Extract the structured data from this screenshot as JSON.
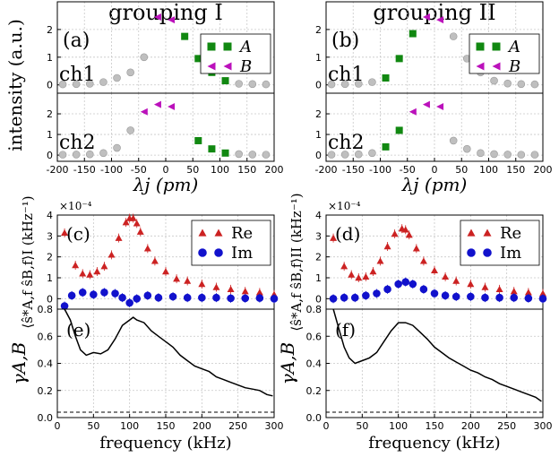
{
  "titles": [
    "grouping I",
    "grouping II"
  ],
  "colors": {
    "gray": "#bfbfbf",
    "green": "#118811",
    "magenta": "#bb11bb",
    "red": "#cc2222",
    "blue": "#1111cc",
    "grid": "#c8c8c8"
  },
  "chart_data": [
    {
      "id": "a",
      "type": "scatter",
      "panel_label": "(a)",
      "title": "grouping I",
      "channel_label": "ch1",
      "ylabel": "intensity (a.u.)",
      "xlabel": "λj (pm)",
      "xlim": [
        -200,
        200
      ],
      "ylim": [
        -0.3,
        3.0
      ],
      "yticks": [
        0,
        1,
        2
      ],
      "xticks": [
        -200,
        -150,
        -100,
        -50,
        0,
        50,
        100,
        150,
        200
      ],
      "series": [
        {
          "name": "",
          "color": "gray",
          "marker": "circle",
          "x": [
            -190,
            -165,
            -140,
            -115,
            -90,
            -65,
            -40,
            135,
            160,
            185
          ],
          "y": [
            0.02,
            0.03,
            0.04,
            0.1,
            0.25,
            0.45,
            1.0,
            0.04,
            0.03,
            0.02
          ]
        },
        {
          "name": "A",
          "color": "green",
          "marker": "square",
          "x": [
            35,
            60,
            85,
            110
          ],
          "y": [
            1.75,
            0.95,
            0.45,
            0.15
          ]
        },
        {
          "name": "B",
          "color": "magenta",
          "marker": "triangle-left",
          "x": [
            -15,
            10
          ],
          "y": [
            2.45,
            2.35
          ]
        }
      ],
      "legend": [
        {
          "label": "A",
          "color": "green",
          "marker": "square"
        },
        {
          "label": "B",
          "color": "magenta",
          "marker": "triangle-left"
        }
      ]
    },
    {
      "id": "a2",
      "type": "scatter",
      "channel_label": "ch2",
      "xlim": [
        -200,
        200
      ],
      "ylim": [
        -0.3,
        3.0
      ],
      "yticks": [
        0,
        1,
        2
      ],
      "series": [
        {
          "name": "",
          "color": "gray",
          "marker": "circle",
          "x": [
            -190,
            -165,
            -140,
            -115,
            -90,
            -65,
            135,
            160,
            185
          ],
          "y": [
            0.02,
            0.03,
            0.04,
            0.1,
            0.35,
            1.2,
            0.05,
            0.03,
            0.02
          ]
        },
        {
          "name": "A",
          "color": "green",
          "marker": "square",
          "x": [
            60,
            85,
            110
          ],
          "y": [
            0.7,
            0.3,
            0.1
          ]
        },
        {
          "name": "B",
          "color": "magenta",
          "marker": "triangle-left",
          "x": [
            -40,
            -15,
            10
          ],
          "y": [
            2.1,
            2.45,
            2.35
          ]
        }
      ]
    },
    {
      "id": "b",
      "type": "scatter",
      "panel_label": "(b)",
      "title": "grouping II",
      "channel_label": "ch1",
      "ylabel": "",
      "xlabel": "λj (pm)",
      "xlim": [
        -200,
        200
      ],
      "ylim": [
        -0.3,
        3.0
      ],
      "yticks": [
        0,
        1,
        2
      ],
      "xticks": [
        -200,
        -150,
        -100,
        -50,
        0,
        50,
        100,
        150,
        200
      ],
      "series": [
        {
          "name": "",
          "color": "gray",
          "marker": "circle",
          "x": [
            -190,
            -165,
            -140,
            -115,
            35,
            60,
            85,
            110,
            135,
            160,
            185
          ],
          "y": [
            0.02,
            0.03,
            0.04,
            0.1,
            1.75,
            0.95,
            0.45,
            0.15,
            0.05,
            0.03,
            0.02
          ]
        },
        {
          "name": "A",
          "color": "green",
          "marker": "square",
          "x": [
            -90,
            -65,
            -40
          ],
          "y": [
            0.25,
            0.95,
            1.85
          ]
        },
        {
          "name": "B",
          "color": "magenta",
          "marker": "triangle-left",
          "x": [
            -15,
            10
          ],
          "y": [
            2.45,
            2.35
          ]
        }
      ],
      "legend": [
        {
          "label": "A",
          "color": "green",
          "marker": "square"
        },
        {
          "label": "B",
          "color": "magenta",
          "marker": "triangle-left"
        }
      ]
    },
    {
      "id": "b2",
      "type": "scatter",
      "channel_label": "ch2",
      "xlim": [
        -200,
        200
      ],
      "ylim": [
        -0.3,
        3.0
      ],
      "yticks": [
        0,
        1,
        2
      ],
      "series": [
        {
          "name": "",
          "color": "gray",
          "marker": "circle",
          "x": [
            -190,
            -165,
            -140,
            -115,
            35,
            60,
            85,
            110,
            135,
            160,
            185
          ],
          "y": [
            0.02,
            0.03,
            0.04,
            0.1,
            0.7,
            0.3,
            0.1,
            0.05,
            0.03,
            0.02,
            0.02
          ]
        },
        {
          "name": "A",
          "color": "green",
          "marker": "square",
          "x": [
            -90,
            -65
          ],
          "y": [
            0.4,
            1.2
          ]
        },
        {
          "name": "B",
          "color": "magenta",
          "marker": "triangle-left",
          "x": [
            -40,
            -15,
            10
          ],
          "y": [
            2.1,
            2.45,
            2.35
          ]
        }
      ]
    },
    {
      "id": "c",
      "type": "scatter",
      "panel_label": "(c)",
      "ylabel": "⟨ŝ*A,f ŝB,f⟩I (kHz⁻¹)",
      "exponent_label": "×10⁻⁴",
      "xlim": [
        0,
        300
      ],
      "ylim": [
        -0.5,
        4.0
      ],
      "yticks": [
        0,
        1,
        2,
        3,
        4
      ],
      "xticks": [
        0,
        50,
        100,
        150,
        200,
        250,
        300
      ],
      "series": [
        {
          "name": "Re",
          "color": "red",
          "marker": "triangle-up",
          "errorbars": true,
          "x": [
            10,
            25,
            35,
            45,
            55,
            65,
            75,
            85,
            95,
            100,
            105,
            110,
            115,
            125,
            135,
            150,
            165,
            180,
            200,
            220,
            240,
            260,
            280,
            300
          ],
          "y": [
            3.15,
            1.6,
            1.2,
            1.15,
            1.3,
            1.55,
            2.1,
            2.9,
            3.65,
            3.85,
            3.85,
            3.6,
            3.2,
            2.4,
            1.8,
            1.3,
            0.95,
            0.85,
            0.7,
            0.55,
            0.45,
            0.35,
            0.3,
            0.2
          ]
        },
        {
          "name": "Im",
          "color": "blue",
          "marker": "circle",
          "errorbars": true,
          "x": [
            10,
            20,
            35,
            50,
            65,
            80,
            90,
            100,
            110,
            125,
            140,
            160,
            180,
            200,
            220,
            240,
            260,
            280,
            300
          ],
          "y": [
            -0.35,
            0.15,
            0.3,
            0.2,
            0.3,
            0.25,
            0.05,
            -0.2,
            0.0,
            0.15,
            0.05,
            0.1,
            0.05,
            0.05,
            0.05,
            0.02,
            0.02,
            0.03,
            0.0
          ]
        }
      ],
      "legend": [
        {
          "label": "Re",
          "color": "red",
          "marker": "triangle-up"
        },
        {
          "label": "Im",
          "color": "blue",
          "marker": "circle"
        }
      ]
    },
    {
      "id": "d",
      "type": "scatter",
      "panel_label": "(d)",
      "ylabel": "⟨ŝ*A,f ŝB,f⟩II (kHz⁻¹)",
      "exponent_label": "×10⁻⁴",
      "xlim": [
        0,
        300
      ],
      "ylim": [
        -0.5,
        4.0
      ],
      "yticks": [
        0,
        1,
        2,
        3,
        4
      ],
      "xticks": [
        0,
        50,
        100,
        150,
        200,
        250,
        300
      ],
      "series": [
        {
          "name": "Re",
          "color": "red",
          "marker": "triangle-up",
          "errorbars": true,
          "x": [
            10,
            25,
            35,
            45,
            55,
            65,
            75,
            85,
            95,
            105,
            110,
            115,
            125,
            135,
            150,
            165,
            180,
            200,
            220,
            240,
            260,
            280,
            300
          ],
          "y": [
            2.9,
            1.55,
            1.15,
            1.0,
            1.05,
            1.3,
            1.8,
            2.5,
            3.1,
            3.35,
            3.3,
            3.05,
            2.4,
            1.8,
            1.35,
            1.05,
            0.85,
            0.7,
            0.55,
            0.45,
            0.35,
            0.3,
            0.25
          ]
        },
        {
          "name": "Im",
          "color": "blue",
          "marker": "circle",
          "errorbars": true,
          "x": [
            10,
            25,
            40,
            55,
            70,
            85,
            100,
            110,
            120,
            135,
            150,
            165,
            180,
            200,
            220,
            240,
            260,
            280,
            300
          ],
          "y": [
            0.0,
            0.05,
            0.05,
            0.15,
            0.25,
            0.45,
            0.7,
            0.8,
            0.7,
            0.45,
            0.25,
            0.15,
            0.1,
            0.1,
            0.05,
            0.05,
            0.05,
            0.02,
            0.0
          ]
        }
      ],
      "legend": [
        {
          "label": "Re",
          "color": "red",
          "marker": "triangle-up"
        },
        {
          "label": "Im",
          "color": "blue",
          "marker": "circle"
        }
      ]
    },
    {
      "id": "e",
      "type": "line",
      "panel_label": "(e)",
      "ylabel": "γA,B",
      "xlabel": "frequency (kHz)",
      "xlim": [
        0,
        300
      ],
      "ylim": [
        0,
        0.8
      ],
      "yticks": [
        0.0,
        0.2,
        0.4,
        0.6,
        0.8
      ],
      "xticks": [
        0,
        50,
        100,
        150,
        200,
        250,
        300
      ],
      "reference_line": 0.04,
      "series": [
        {
          "name": "",
          "color": "black",
          "x": [
            10,
            18,
            25,
            32,
            40,
            50,
            60,
            70,
            80,
            90,
            100,
            105,
            110,
            120,
            130,
            140,
            150,
            160,
            170,
            180,
            190,
            200,
            210,
            220,
            230,
            240,
            250,
            260,
            270,
            280,
            290,
            298
          ],
          "y": [
            0.8,
            0.72,
            0.6,
            0.5,
            0.46,
            0.48,
            0.47,
            0.5,
            0.58,
            0.68,
            0.72,
            0.74,
            0.72,
            0.7,
            0.64,
            0.6,
            0.56,
            0.52,
            0.46,
            0.42,
            0.38,
            0.36,
            0.34,
            0.3,
            0.28,
            0.26,
            0.24,
            0.22,
            0.21,
            0.2,
            0.17,
            0.16
          ]
        }
      ]
    },
    {
      "id": "f",
      "type": "line",
      "panel_label": "(f)",
      "ylabel": "γA,B",
      "xlabel": "frequency (kHz)",
      "xlim": [
        0,
        300
      ],
      "ylim": [
        0,
        0.8
      ],
      "yticks": [
        0.0,
        0.2,
        0.4,
        0.6,
        0.8
      ],
      "xticks": [
        0,
        50,
        100,
        150,
        200,
        250,
        300
      ],
      "reference_line": 0.04,
      "series": [
        {
          "name": "",
          "color": "black",
          "x": [
            10,
            18,
            25,
            32,
            40,
            50,
            60,
            70,
            80,
            90,
            100,
            110,
            120,
            130,
            140,
            150,
            160,
            170,
            180,
            190,
            200,
            210,
            220,
            230,
            240,
            250,
            260,
            270,
            280,
            290,
            298
          ],
          "y": [
            0.8,
            0.65,
            0.52,
            0.44,
            0.4,
            0.42,
            0.44,
            0.48,
            0.56,
            0.64,
            0.7,
            0.7,
            0.68,
            0.63,
            0.58,
            0.52,
            0.48,
            0.44,
            0.41,
            0.38,
            0.35,
            0.33,
            0.3,
            0.28,
            0.25,
            0.23,
            0.21,
            0.19,
            0.17,
            0.15,
            0.12
          ]
        }
      ]
    }
  ]
}
